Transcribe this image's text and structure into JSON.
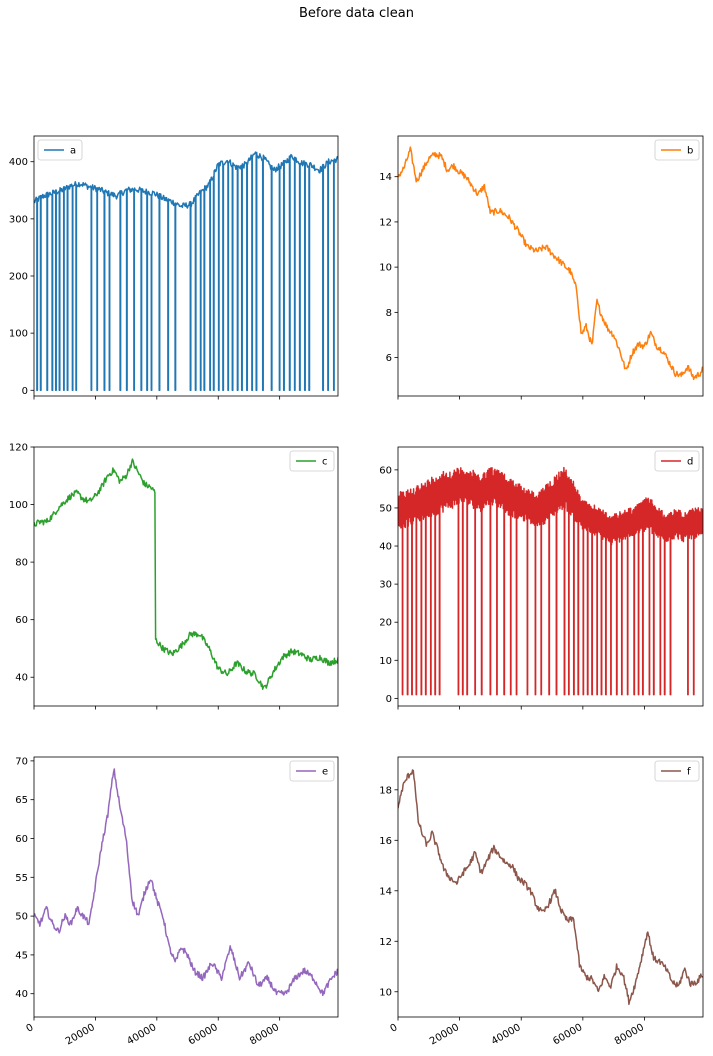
{
  "figure": {
    "suptitle": "Before data clean"
  },
  "chart_data": [
    {
      "type": "line",
      "series": [
        {
          "name": "a",
          "color": "#1f77b4",
          "x": [
            0,
            3000,
            6000,
            9000,
            12000,
            15000,
            18000,
            21000,
            24000,
            27000,
            30000,
            33000,
            36000,
            39000,
            42000,
            45000,
            48000,
            51000,
            54000,
            57000,
            60000,
            63000,
            66000,
            69000,
            72000,
            75000,
            78000,
            81000,
            84000,
            87000,
            90000,
            93000,
            96000,
            99000
          ],
          "values": [
            330,
            340,
            345,
            350,
            358,
            362,
            356,
            352,
            345,
            340,
            350,
            352,
            348,
            345,
            336,
            330,
            322,
            325,
            345,
            360,
            395,
            402,
            390,
            395,
            415,
            405,
            385,
            395,
            410,
            398,
            395,
            385,
            400,
            405
          ],
          "dropouts": [
            1000,
            2200,
            4200,
            5800,
            7100,
            8300,
            9600,
            10800,
            12500,
            13700,
            18700,
            20400,
            22800,
            24500,
            28000,
            30200,
            32500,
            34800,
            36700,
            38200,
            40800,
            43500,
            45900,
            51000,
            52600,
            54100,
            55500,
            57200,
            58500,
            60000,
            61500,
            63200,
            64700,
            66300,
            67600,
            69400,
            70900,
            72300,
            74600,
            77300,
            79800,
            81300,
            83100,
            84900,
            86400,
            88200,
            89500,
            94000,
            95700,
            97500
          ]
        }
      ],
      "xlim": [
        0,
        99000
      ],
      "ylim": [
        -10,
        445
      ],
      "yticks": [
        0,
        100,
        200,
        300,
        400
      ],
      "legend_loc": "upper left"
    },
    {
      "type": "line",
      "series": [
        {
          "name": "b",
          "color": "#ff7f0e",
          "x": [
            0,
            2000,
            4000,
            6000,
            8000,
            10000,
            12000,
            14000,
            16000,
            18000,
            20000,
            22000,
            24000,
            26000,
            28000,
            30000,
            33000,
            36000,
            39000,
            42000,
            45000,
            48000,
            50000,
            53000,
            56000,
            58000,
            59500,
            61000,
            63000,
            64500,
            66000,
            68000,
            70000,
            72000,
            74000,
            76000,
            78000,
            80000,
            82000,
            84000,
            86000,
            88000,
            90000,
            92000,
            94000,
            96000,
            98000,
            99000
          ],
          "values": [
            14.0,
            14.4,
            15.2,
            13.8,
            14.3,
            14.8,
            15.0,
            14.9,
            14.3,
            14.5,
            14.2,
            14.0,
            13.6,
            13.2,
            13.6,
            12.4,
            12.5,
            12.2,
            11.6,
            10.9,
            10.7,
            10.9,
            10.6,
            10.2,
            9.8,
            9.0,
            7.0,
            7.4,
            6.5,
            8.5,
            7.9,
            7.3,
            7.0,
            6.3,
            5.4,
            6.2,
            6.6,
            6.5,
            7.1,
            6.5,
            6.3,
            5.8,
            5.3,
            5.2,
            5.6,
            5.1,
            5.3,
            5.5
          ]
        }
      ],
      "xlim": [
        0,
        99000
      ],
      "ylim": [
        4.3,
        15.8
      ],
      "yticks": [
        6,
        8,
        10,
        12,
        14
      ],
      "legend_loc": "upper right"
    },
    {
      "type": "line",
      "series": [
        {
          "name": "c",
          "color": "#2ca02c",
          "x": [
            0,
            2000,
            4000,
            6000,
            8000,
            10000,
            12000,
            14000,
            16000,
            18000,
            20000,
            22000,
            24000,
            26000,
            28000,
            30000,
            32000,
            34000,
            36000,
            38000,
            39500,
            39600,
            42000,
            45000,
            48000,
            51000,
            54000,
            57000,
            60000,
            63000,
            66000,
            69000,
            72000,
            75000,
            78000,
            81000,
            84000,
            87000,
            90000,
            93000,
            96000,
            99000
          ],
          "values": [
            93,
            94,
            94,
            96,
            99,
            101,
            103,
            104,
            102,
            101,
            103,
            106,
            110,
            112,
            108,
            110,
            115,
            111,
            107,
            106,
            104,
            53,
            50,
            48,
            51,
            55,
            55,
            50,
            43,
            41,
            45,
            42,
            41,
            36,
            42,
            47,
            49,
            48,
            46,
            47,
            45,
            46
          ]
        }
      ],
      "xlim": [
        0,
        99000
      ],
      "ylim": [
        30,
        120
      ],
      "yticks": [
        40,
        60,
        80,
        100,
        120
      ],
      "legend_loc": "upper right"
    },
    {
      "type": "line",
      "series": [
        {
          "name": "d",
          "color": "#d62728",
          "x": [
            0,
            3000,
            6000,
            9000,
            12000,
            15000,
            18000,
            21000,
            24000,
            27000,
            30000,
            33000,
            36000,
            39000,
            42000,
            45000,
            48000,
            51000,
            54000,
            57000,
            60000,
            63000,
            66000,
            69000,
            72000,
            75000,
            78000,
            81000,
            84000,
            87000,
            90000,
            93000,
            96000,
            99000
          ],
          "band_low": [
            44,
            45,
            46,
            47,
            48,
            49,
            50,
            51,
            50,
            49,
            51,
            50,
            48,
            47,
            46,
            45,
            46,
            48,
            50,
            47,
            44,
            43,
            42,
            40,
            41,
            42,
            43,
            44,
            42,
            41,
            42,
            41,
            42,
            42
          ],
          "band_high": [
            54,
            55,
            56,
            57,
            59,
            60,
            60,
            61,
            60,
            59,
            61,
            60,
            58,
            57,
            55,
            54,
            56,
            59,
            61,
            57,
            52,
            51,
            50,
            48,
            49,
            50,
            51,
            53,
            51,
            48,
            50,
            49,
            50,
            50
          ],
          "dropouts": [
            1500,
            3000,
            4500,
            6000,
            7500,
            9000,
            10500,
            12000,
            13500,
            19500,
            21000,
            22500,
            25000,
            27000,
            30000,
            32000,
            34500,
            36500,
            38500,
            42000,
            44500,
            46500,
            49000,
            51500,
            54000,
            55500,
            57000,
            58500,
            60000,
            61500,
            63000,
            64500,
            66000,
            67500,
            69000,
            71000,
            72500,
            74500,
            76500,
            78000,
            79500,
            81500,
            83000,
            85000,
            86500,
            88500,
            94000,
            96000
          ]
        }
      ],
      "xlim": [
        0,
        99000
      ],
      "ylim": [
        -2,
        66
      ],
      "yticks": [
        0,
        10,
        20,
        30,
        40,
        50,
        60
      ],
      "legend_loc": "upper right"
    },
    {
      "type": "line",
      "series": [
        {
          "name": "e",
          "color": "#9467bd",
          "x": [
            0,
            2000,
            4000,
            6000,
            8000,
            10000,
            12000,
            14000,
            16000,
            18000,
            20000,
            22000,
            24000,
            26000,
            28000,
            30000,
            32000,
            34000,
            36000,
            38000,
            40000,
            42000,
            44000,
            46000,
            48000,
            50000,
            52000,
            55000,
            58000,
            61000,
            64000,
            67000,
            70000,
            73000,
            76000,
            79000,
            82000,
            85000,
            88000,
            91000,
            94000,
            97000,
            99000
          ],
          "values": [
            50,
            49,
            51,
            49,
            48,
            50,
            49,
            51,
            50,
            49,
            54,
            59,
            63,
            69,
            64,
            60,
            52,
            50,
            53,
            55,
            52,
            50,
            46,
            44,
            46,
            45,
            43,
            42,
            44,
            42,
            46,
            42,
            44,
            41,
            42,
            40,
            40,
            42,
            43,
            42,
            40,
            42,
            43
          ]
        }
      ],
      "xlim": [
        0,
        99000
      ],
      "ylim": [
        37,
        70.5
      ],
      "yticks": [
        40,
        45,
        50,
        55,
        60,
        65,
        70
      ],
      "legend_loc": "upper right"
    },
    {
      "type": "line",
      "series": [
        {
          "name": "f",
          "color": "#8c564b",
          "x": [
            0,
            1500,
            3000,
            5000,
            6500,
            8000,
            9500,
            11000,
            13000,
            15000,
            17000,
            19000,
            21000,
            23000,
            25000,
            27000,
            29000,
            31000,
            33000,
            35000,
            37000,
            39000,
            41000,
            43000,
            45000,
            47000,
            49000,
            51000,
            53000,
            55000,
            57000,
            59000,
            61000,
            63000,
            65000,
            67000,
            69000,
            71000,
            73000,
            75000,
            77000,
            79000,
            81000,
            83000,
            85000,
            87000,
            89000,
            91000,
            93000,
            95000,
            97000,
            99000
          ],
          "values": [
            17.3,
            18.1,
            18.5,
            18.8,
            16.8,
            16.2,
            15.8,
            16.3,
            15.6,
            14.8,
            14.5,
            14.3,
            14.7,
            15.0,
            15.5,
            14.7,
            15.2,
            15.7,
            15.4,
            15.1,
            15.0,
            14.5,
            14.3,
            14.0,
            13.4,
            13.1,
            13.5,
            14.0,
            13.2,
            12.8,
            12.9,
            11.0,
            10.6,
            10.5,
            10.0,
            10.6,
            10.2,
            11.0,
            10.7,
            9.6,
            10.3,
            11.3,
            12.4,
            11.3,
            11.2,
            10.9,
            10.4,
            10.2,
            10.9,
            10.3,
            10.4,
            10.7
          ]
        }
      ],
      "xlim": [
        0,
        99000
      ],
      "ylim": [
        9.0,
        19.3
      ],
      "yticks": [
        10,
        12,
        14,
        16,
        18
      ],
      "legend_loc": "upper right"
    }
  ],
  "shared_x": {
    "xticks": [
      0,
      20000,
      40000,
      60000,
      80000
    ]
  }
}
